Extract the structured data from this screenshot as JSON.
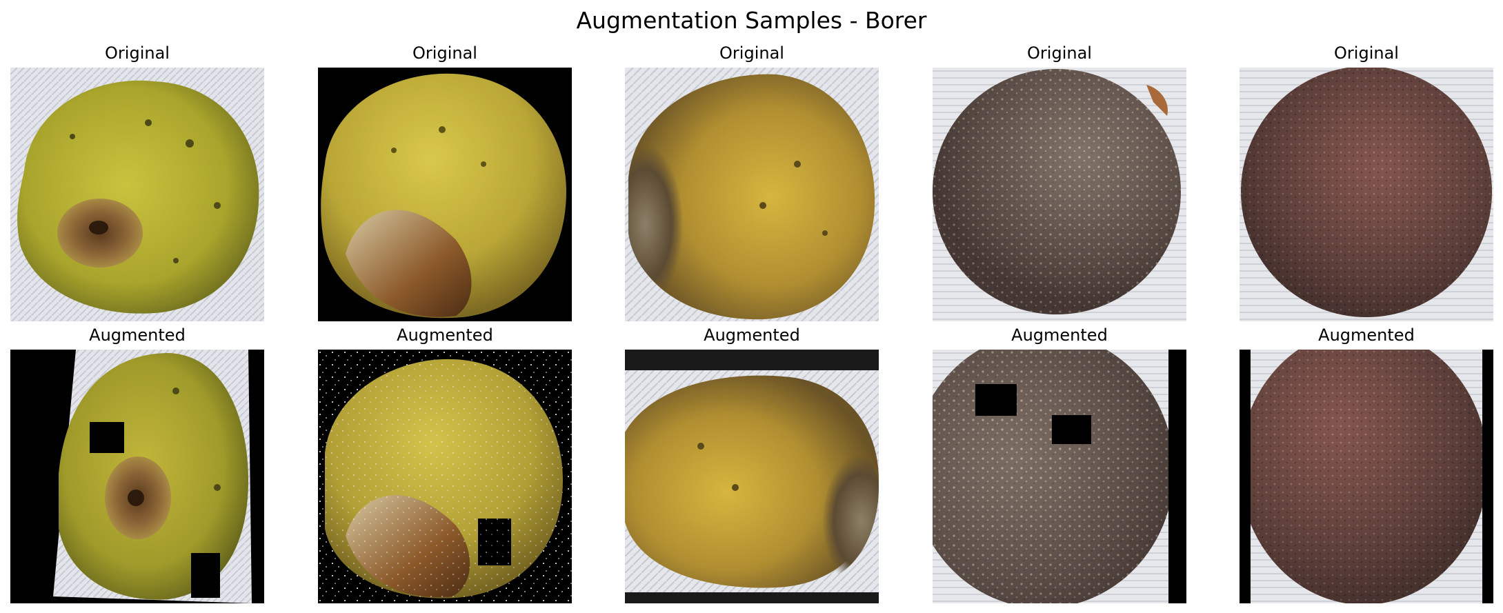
{
  "figure": {
    "title": "Augmentation Samples - Borer"
  },
  "rows": [
    {
      "label": "Original",
      "panels": [
        {
          "title": "Original",
          "fruit": "yellow-green"
        },
        {
          "title": "Original",
          "fruit": "yellow"
        },
        {
          "title": "Original",
          "fruit": "yellow-brown"
        },
        {
          "title": "Original",
          "fruit": "dark-speckled"
        },
        {
          "title": "Original",
          "fruit": "dark-reddish"
        }
      ]
    },
    {
      "label": "Augmented",
      "panels": [
        {
          "title": "Augmented",
          "fruit": "yellow-green"
        },
        {
          "title": "Augmented",
          "fruit": "yellow"
        },
        {
          "title": "Augmented",
          "fruit": "yellow-brown"
        },
        {
          "title": "Augmented",
          "fruit": "dark-speckled"
        },
        {
          "title": "Augmented",
          "fruit": "dark-reddish"
        }
      ]
    }
  ],
  "colors": {
    "background": "#ffffff",
    "cloth": "#dfe1e6",
    "mask": "#000000"
  }
}
